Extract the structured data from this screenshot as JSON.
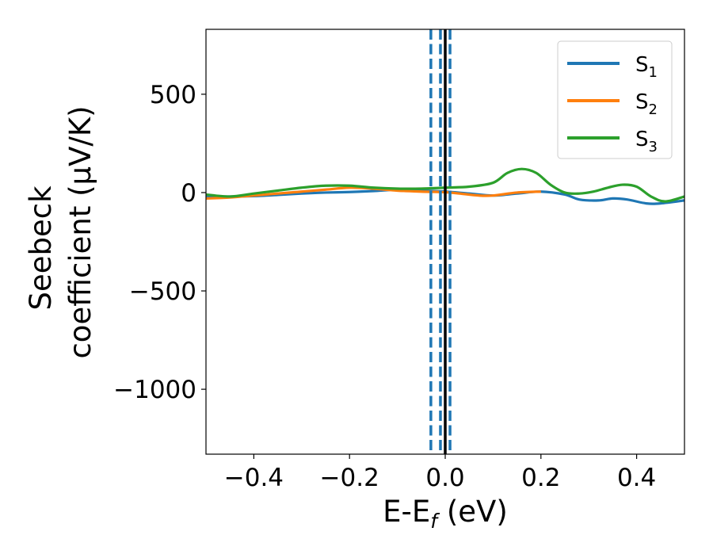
{
  "chart_data": {
    "type": "line",
    "title": "",
    "xlabel": "E-E_f (eV)",
    "xlabel_parts": {
      "main": "E-E",
      "sub": "f",
      "rest": " (eV)"
    },
    "ylabel_lines": [
      "Seebeck",
      "coefficient  (μV/K)"
    ],
    "xlim": [
      -0.5,
      0.5
    ],
    "ylim": [
      -1330,
      830
    ],
    "xticks": [
      -0.4,
      -0.2,
      0.0,
      0.2,
      0.4
    ],
    "xtick_labels": [
      "−0.4",
      "−0.2",
      "0.0",
      "0.2",
      "0.4"
    ],
    "yticks": [
      500,
      0,
      -500,
      -1000
    ],
    "ytick_labels": [
      "500",
      "0",
      "−500",
      "−1000"
    ],
    "grid": false,
    "legend_position": "top-right",
    "vlines": [
      {
        "x": 0.0,
        "style": "solid",
        "color": "#000000"
      },
      {
        "x": -0.03,
        "style": "dashed",
        "color": "#1f77b4"
      },
      {
        "x": -0.01,
        "style": "dashed",
        "color": "#1f77b4"
      },
      {
        "x": 0.01,
        "style": "dashed",
        "color": "#1f77b4"
      }
    ],
    "series": [
      {
        "name": "S1",
        "label_main": "S",
        "label_sub": "1",
        "color": "#1f77b4",
        "x": [
          -0.5,
          -0.45,
          -0.4,
          -0.35,
          -0.3,
          -0.25,
          -0.2,
          -0.15,
          -0.1,
          -0.05,
          0.0,
          0.05,
          0.1,
          0.15,
          0.2,
          0.25,
          0.28,
          0.32,
          0.35,
          0.38,
          0.42,
          0.45,
          0.5
        ],
        "y": [
          -18,
          -20,
          -18,
          -12,
          -5,
          0,
          3,
          8,
          15,
          10,
          5,
          -5,
          -15,
          -5,
          5,
          -10,
          -35,
          -40,
          -30,
          -35,
          -55,
          -55,
          -40
        ]
      },
      {
        "name": "S2",
        "label_main": "S",
        "label_sub": "2",
        "color": "#ff7f0e",
        "x": [
          -0.5,
          -0.45,
          -0.4,
          -0.35,
          -0.3,
          -0.25,
          -0.2,
          -0.15,
          -0.1,
          -0.05,
          0.0,
          0.03,
          0.07,
          0.1,
          0.15,
          0.2
        ],
        "y": [
          -30,
          -25,
          -15,
          -5,
          5,
          15,
          25,
          20,
          10,
          5,
          2,
          -5,
          -15,
          -15,
          0,
          5
        ]
      },
      {
        "name": "S3",
        "label_main": "S",
        "label_sub": "3",
        "color": "#2ca02c",
        "x": [
          -0.5,
          -0.45,
          -0.4,
          -0.35,
          -0.3,
          -0.25,
          -0.2,
          -0.15,
          -0.1,
          -0.05,
          0.0,
          0.05,
          0.1,
          0.13,
          0.16,
          0.19,
          0.22,
          0.25,
          0.28,
          0.31,
          0.34,
          0.37,
          0.4,
          0.43,
          0.46,
          0.5
        ],
        "y": [
          -10,
          -20,
          -5,
          10,
          25,
          35,
          35,
          25,
          20,
          20,
          25,
          30,
          50,
          100,
          120,
          100,
          40,
          0,
          -5,
          5,
          25,
          40,
          30,
          -20,
          -45,
          -20
        ]
      }
    ]
  }
}
